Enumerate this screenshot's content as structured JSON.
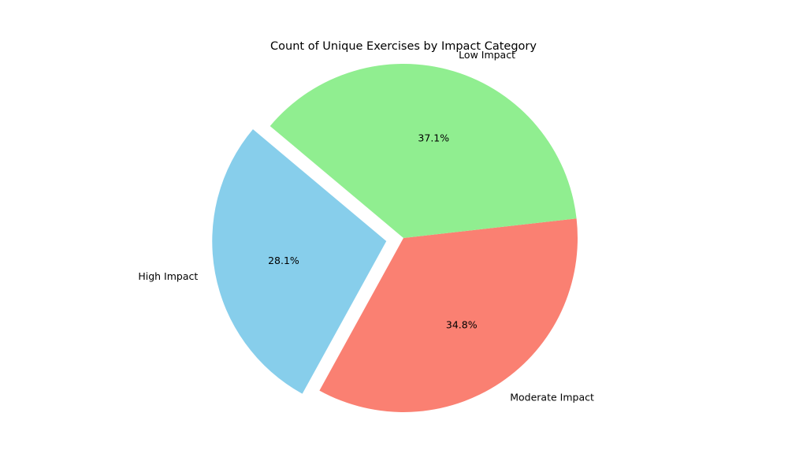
{
  "chart_data": {
    "type": "pie",
    "title": "Count of Unique Exercises by Impact Category",
    "slices": [
      {
        "label": "High Impact",
        "value": 28.1,
        "pct_label": "28.1%",
        "color": "#87CEEB",
        "exploded": true
      },
      {
        "label": "Moderate Impact",
        "value": 34.8,
        "pct_label": "34.8%",
        "color": "#FA8072",
        "exploded": false
      },
      {
        "label": "Low Impact",
        "value": 37.1,
        "pct_label": "37.1%",
        "color": "#90EE90",
        "exploded": false
      }
    ],
    "start_angle_deg": 140,
    "direction": "counterclockwise",
    "legend": "none"
  }
}
